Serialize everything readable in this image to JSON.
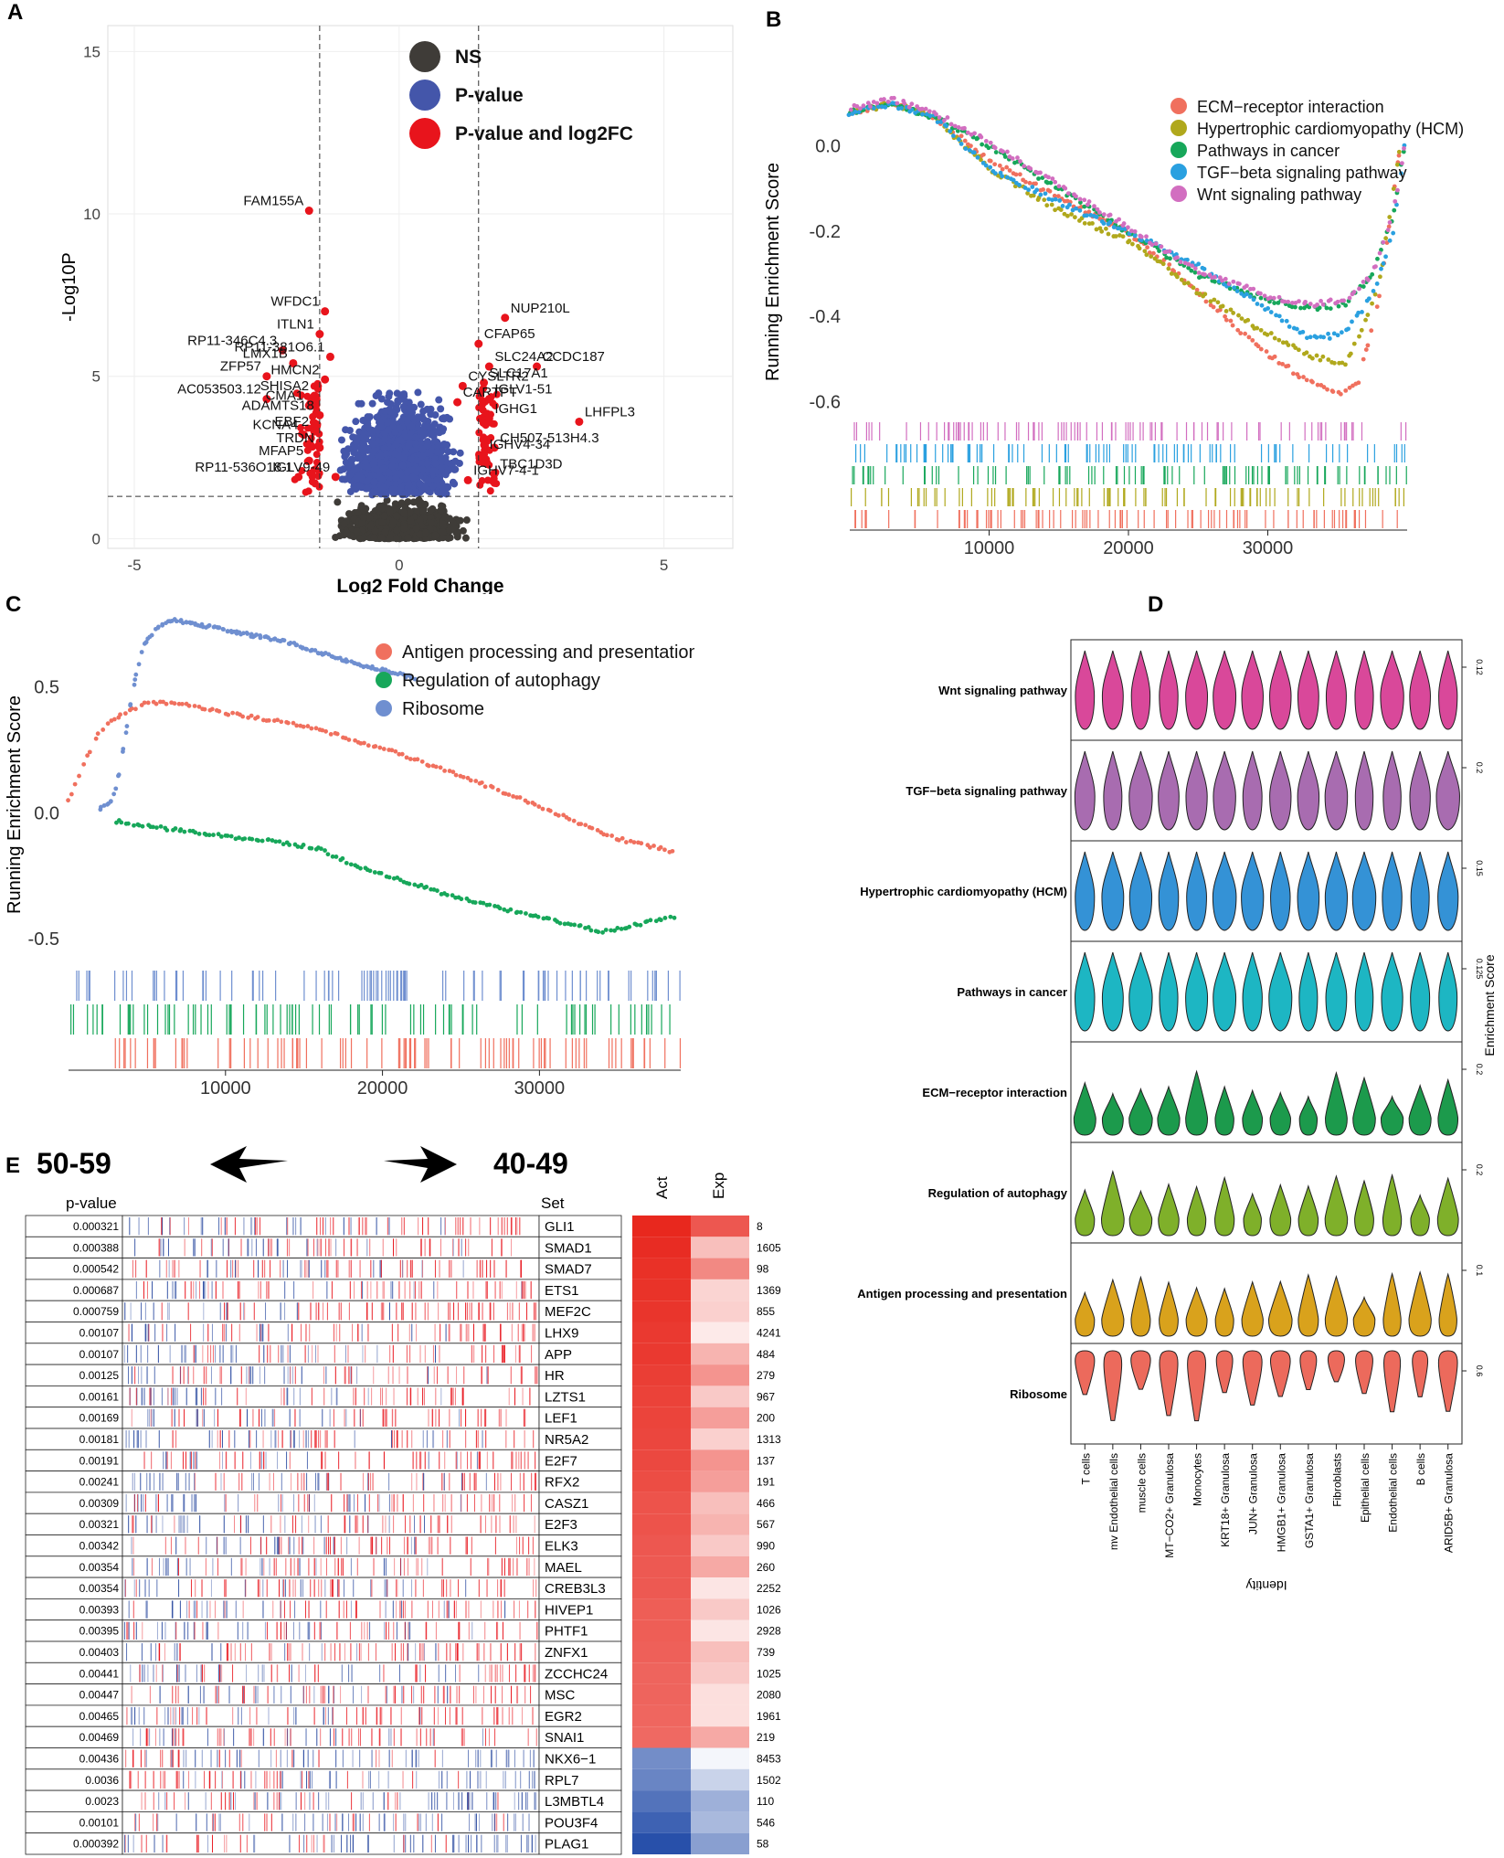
{
  "panel_labels": {
    "a": "A",
    "b": "B",
    "c": "C",
    "d": "D",
    "e": "E"
  },
  "colors": {
    "ns": "#3f3c38",
    "pval": "#4456aa",
    "pfc": "#e8141c",
    "bar_blue": "#2a4aa0",
    "bar_red": "#e8141c"
  },
  "chart_data": [
    {
      "id": "A",
      "type": "scatter",
      "title": "",
      "xlabel": "Log2 Fold Change",
      "ylabel": "-Log10P",
      "xlim": [
        -5.5,
        6.3
      ],
      "ylim": [
        -0.3,
        15.8
      ],
      "xticks": [
        "-5",
        "0",
        "5"
      ],
      "yticks": [
        "0",
        "5",
        "10",
        "15"
      ],
      "xtick_values": [
        -5,
        0,
        5
      ],
      "ytick_values": [
        0,
        5,
        10,
        15
      ],
      "thresholds": {
        "x": [
          -1.5,
          1.5
        ],
        "y": 1.3
      },
      "legend": [
        {
          "label": "NS",
          "color": "#3f3c38"
        },
        {
          "label": "P-value",
          "color": "#4456aa"
        },
        {
          "label": "P-value and log2FC",
          "color": "#e8141c"
        }
      ],
      "labels": [
        {
          "text": "FAM155A",
          "x": -1.7,
          "y": 10.1
        },
        {
          "text": "WFDC1",
          "x": -1.4,
          "y": 7.0
        },
        {
          "text": "NUP210L",
          "x": 2.0,
          "y": 6.8
        },
        {
          "text": "ITLN1",
          "x": -1.5,
          "y": 6.3
        },
        {
          "text": "CFAP65",
          "x": 1.5,
          "y": 6.0
        },
        {
          "text": "RP11-346C4.3",
          "x": -2.2,
          "y": 5.8
        },
        {
          "text": "RP11-381O6.1",
          "x": -1.3,
          "y": 5.6
        },
        {
          "text": "LMX1B",
          "x": -2.0,
          "y": 5.4
        },
        {
          "text": "SLC24A2",
          "x": 1.7,
          "y": 5.3
        },
        {
          "text": "CCDC187",
          "x": 2.6,
          "y": 5.3
        },
        {
          "text": "ZFP57",
          "x": -2.5,
          "y": 5.0
        },
        {
          "text": "HMCN2",
          "x": -1.4,
          "y": 4.9
        },
        {
          "text": "SLC17A1",
          "x": 1.6,
          "y": 4.8
        },
        {
          "text": "CYSLTR2",
          "x": 1.2,
          "y": 4.7
        },
        {
          "text": "AC053503.12",
          "x": -2.5,
          "y": 4.3
        },
        {
          "text": "SHISA2",
          "x": -1.6,
          "y": 4.4
        },
        {
          "text": "CARTPT",
          "x": 1.1,
          "y": 4.2
        },
        {
          "text": "IGLV1-51",
          "x": 1.7,
          "y": 4.3
        },
        {
          "text": "CMA1",
          "x": -1.7,
          "y": 4.1
        },
        {
          "text": "ADAMTS18",
          "x": -1.5,
          "y": 3.8
        },
        {
          "text": "IGHG1",
          "x": 1.7,
          "y": 3.7
        },
        {
          "text": "LHFPL3",
          "x": 3.4,
          "y": 3.6
        },
        {
          "text": "KCNA4",
          "x": -1.8,
          "y": 3.2
        },
        {
          "text": "EBF2",
          "x": -1.6,
          "y": 3.3
        },
        {
          "text": "CH507-513H4.3",
          "x": 1.8,
          "y": 2.8
        },
        {
          "text": "TRDN",
          "x": -1.5,
          "y": 2.8
        },
        {
          "text": "MFAP5",
          "x": -1.7,
          "y": 2.4
        },
        {
          "text": "IGHV4-34",
          "x": 1.6,
          "y": 2.6
        },
        {
          "text": "TBC1D3D",
          "x": 1.8,
          "y": 2.0
        },
        {
          "text": "RP11-536O18.1",
          "x": -1.9,
          "y": 1.9
        },
        {
          "text": "IGLV9-49",
          "x": -1.2,
          "y": 1.9
        },
        {
          "text": "IGHV7-4-1",
          "x": 1.3,
          "y": 1.8
        }
      ]
    },
    {
      "id": "B",
      "type": "line",
      "xlabel": "",
      "ylabel": "Running Enrichment Score",
      "xlim": [
        0,
        40000
      ],
      "ylim": [
        -0.62,
        0.14
      ],
      "xticks": [
        "10000",
        "20000",
        "30000"
      ],
      "yticks": [
        "0.0",
        "-0.2",
        "-0.4",
        "-0.6"
      ],
      "xtick_values": [
        10000,
        20000,
        30000
      ],
      "ytick_values": [
        0.0,
        -0.2,
        -0.4,
        -0.6
      ],
      "series": [
        {
          "name": "ECM−receptor interaction",
          "color": "#f0705e",
          "x": [
            0,
            3000,
            6000,
            10000,
            15000,
            20000,
            25000,
            29000,
            31000,
            33000,
            35500,
            36500,
            38000,
            39500
          ],
          "values": [
            0.08,
            0.1,
            0.07,
            -0.03,
            -0.12,
            -0.2,
            -0.34,
            -0.46,
            -0.51,
            -0.55,
            -0.58,
            -0.55,
            -0.35,
            0.0
          ]
        },
        {
          "name": "Hypertrophic cardiomyopathy (HCM)",
          "color": "#b0a81c",
          "x": [
            0,
            3000,
            6000,
            10000,
            15000,
            20000,
            25000,
            29000,
            33000,
            35500,
            36500,
            38000,
            39500
          ],
          "values": [
            0.08,
            0.1,
            0.07,
            -0.05,
            -0.15,
            -0.22,
            -0.34,
            -0.42,
            -0.49,
            -0.51,
            -0.45,
            -0.32,
            0.0
          ]
        },
        {
          "name": "Pathways in cancer",
          "color": "#17a75a",
          "x": [
            0,
            3000,
            6000,
            10000,
            15000,
            20000,
            25000,
            30000,
            33000,
            35500,
            37500,
            39000,
            39800
          ],
          "values": [
            0.08,
            0.1,
            0.07,
            0.0,
            -0.1,
            -0.2,
            -0.3,
            -0.36,
            -0.38,
            -0.37,
            -0.3,
            -0.16,
            0.0
          ]
        },
        {
          "name": "TGF−beta signaling pathway",
          "color": "#2aa0e0",
          "x": [
            0,
            3000,
            6000,
            10000,
            15000,
            20000,
            25000,
            29000,
            33000,
            35500,
            37500,
            39000,
            39800
          ],
          "values": [
            0.08,
            0.1,
            0.07,
            -0.05,
            -0.13,
            -0.2,
            -0.28,
            -0.36,
            -0.45,
            -0.44,
            -0.35,
            -0.2,
            0.0
          ]
        },
        {
          "name": "Wnt signaling pathway",
          "color": "#d26ec0",
          "x": [
            0,
            3000,
            6000,
            10000,
            15000,
            20000,
            25000,
            30000,
            33000,
            35500,
            37500,
            39000,
            39800
          ],
          "values": [
            0.09,
            0.11,
            0.08,
            0.01,
            -0.09,
            -0.19,
            -0.29,
            -0.35,
            -0.37,
            -0.36,
            -0.3,
            -0.16,
            0.0
          ]
        }
      ]
    },
    {
      "id": "C",
      "type": "line",
      "xlabel": "",
      "ylabel": "Running Enrichment Score",
      "xlim": [
        0,
        39000
      ],
      "ylim": [
        -0.58,
        0.8
      ],
      "xticks": [
        "10000",
        "20000",
        "30000"
      ],
      "yticks": [
        "0.5",
        "0.0",
        "-0.5"
      ],
      "xtick_values": [
        10000,
        20000,
        30000
      ],
      "ytick_values": [
        0.5,
        0.0,
        -0.5
      ],
      "series": [
        {
          "name": "Antigen processing and presentation",
          "color": "#f0705e",
          "x": [
            0,
            1000,
            2000,
            3500,
            5000,
            7000,
            10000,
            15000,
            20000,
            25000,
            30000,
            35000,
            38500
          ],
          "values": [
            0.05,
            0.2,
            0.33,
            0.4,
            0.44,
            0.44,
            0.4,
            0.35,
            0.26,
            0.15,
            0.03,
            -0.1,
            -0.15
          ]
        },
        {
          "name": "Regulation of autophagy",
          "color": "#17a75a",
          "x": [
            3000,
            5000,
            10000,
            13000,
            16000,
            18000,
            21000,
            24000,
            27000,
            30000,
            34000,
            38500
          ],
          "values": [
            -0.03,
            -0.05,
            -0.09,
            -0.11,
            -0.14,
            -0.2,
            -0.26,
            -0.32,
            -0.37,
            -0.41,
            -0.47,
            -0.41
          ]
        },
        {
          "name": "Ribosome",
          "color": "#6f8fd0",
          "x": [
            2000,
            2800,
            3300,
            3800,
            4300,
            4800,
            5500,
            6500,
            7500,
            10000,
            14000,
            18000,
            22000
          ],
          "values": [
            0.02,
            0.05,
            0.18,
            0.38,
            0.55,
            0.67,
            0.73,
            0.77,
            0.76,
            0.73,
            0.68,
            0.6,
            0.54
          ]
        }
      ]
    },
    {
      "id": "D",
      "type": "violin",
      "xlabel": "Identity",
      "ylabel": "Enrichment Score",
      "categories": [
        "T cells",
        "mv Endothelial cells",
        "muscle cells",
        "MT−CO2+ Granulosa",
        "Monocytes",
        "KRT18+ Granulosa",
        "JUN+ Granulosa",
        "HMGB1+ Granulosa",
        "GSTA1+ Granulosa",
        "Fibroblasts",
        "Epithelial cells",
        "Endothelial cells",
        "B cells",
        "ARID5B+ Granulosa"
      ],
      "series": [
        {
          "name": "Wnt signaling pathway",
          "color": "#d9489a",
          "tick": "0.12"
        },
        {
          "name": "TGF−beta signaling pathway",
          "color": "#a86cb0",
          "tick": "0.2"
        },
        {
          "name": "Hypertrophic cardiomyopathy (HCM)",
          "color": "#3492d6",
          "tick": "0.15"
        },
        {
          "name": "Pathways in cancer",
          "color": "#1db6c3",
          "tick": "0.125"
        },
        {
          "name": "ECM−receptor interaction",
          "color": "#1c9a4c",
          "tick": "0.2"
        },
        {
          "name": "Regulation of autophagy",
          "color": "#7fb02a",
          "tick": "0.2"
        },
        {
          "name": "Antigen processing and presentation",
          "color": "#d9a21c",
          "tick": "0.1"
        },
        {
          "name": "Ribosome",
          "color": "#ec6a5c",
          "tick": "0.6"
        }
      ]
    },
    {
      "id": "E",
      "type": "table",
      "title_left": "50-59",
      "title_right": "40-49",
      "col_pvalue": "p-value",
      "col_set": "Set",
      "col_act": "Act",
      "col_exp": "Exp",
      "rows": [
        {
          "p": "0.000321",
          "set": "GLI1",
          "n": "8",
          "dir": "up",
          "act": 1.0,
          "exp": 0.78
        },
        {
          "p": "0.000388",
          "set": "SMAD1",
          "n": "1605",
          "dir": "up",
          "act": 0.98,
          "exp": 0.3
        },
        {
          "p": "0.000542",
          "set": "SMAD7",
          "n": "98",
          "dir": "up",
          "act": 0.96,
          "exp": 0.55
        },
        {
          "p": "0.000687",
          "set": "ETS1",
          "n": "1369",
          "dir": "up",
          "act": 0.95,
          "exp": 0.2
        },
        {
          "p": "0.000759",
          "set": "MEF2C",
          "n": "855",
          "dir": "up",
          "act": 0.94,
          "exp": 0.22
        },
        {
          "p": "0.00107",
          "set": "LHX9",
          "n": "4241",
          "dir": "up",
          "act": 0.92,
          "exp": 0.1
        },
        {
          "p": "0.00107",
          "set": "APP",
          "n": "484",
          "dir": "up",
          "act": 0.92,
          "exp": 0.35
        },
        {
          "p": "0.00125",
          "set": "HR",
          "n": "279",
          "dir": "up",
          "act": 0.9,
          "exp": 0.5
        },
        {
          "p": "0.00161",
          "set": "LZTS1",
          "n": "967",
          "dir": "up",
          "act": 0.88,
          "exp": 0.25
        },
        {
          "p": "0.00169",
          "set": "LEF1",
          "n": "200",
          "dir": "up",
          "act": 0.87,
          "exp": 0.45
        },
        {
          "p": "0.00181",
          "set": "NR5A2",
          "n": "1313",
          "dir": "up",
          "act": 0.86,
          "exp": 0.22
        },
        {
          "p": "0.00191",
          "set": "E2F7",
          "n": "137",
          "dir": "up",
          "act": 0.85,
          "exp": 0.5
        },
        {
          "p": "0.00241",
          "set": "RFX2",
          "n": "191",
          "dir": "up",
          "act": 0.83,
          "exp": 0.45
        },
        {
          "p": "0.00309",
          "set": "CASZ1",
          "n": "466",
          "dir": "up",
          "act": 0.8,
          "exp": 0.3
        },
        {
          "p": "0.00321",
          "set": "E2F3",
          "n": "567",
          "dir": "up",
          "act": 0.8,
          "exp": 0.35
        },
        {
          "p": "0.00342",
          "set": "ELK3",
          "n": "990",
          "dir": "up",
          "act": 0.78,
          "exp": 0.25
        },
        {
          "p": "0.00354",
          "set": "MAEL",
          "n": "260",
          "dir": "up",
          "act": 0.77,
          "exp": 0.4
        },
        {
          "p": "0.00354",
          "set": "CREB3L3",
          "n": "2252",
          "dir": "up",
          "act": 0.77,
          "exp": 0.12
        },
        {
          "p": "0.00393",
          "set": "HIVEP1",
          "n": "1026",
          "dir": "up",
          "act": 0.75,
          "exp": 0.25
        },
        {
          "p": "0.00395",
          "set": "PHTF1",
          "n": "2928",
          "dir": "up",
          "act": 0.75,
          "exp": 0.12
        },
        {
          "p": "0.00403",
          "set": "ZNFX1",
          "n": "739",
          "dir": "up",
          "act": 0.74,
          "exp": 0.3
        },
        {
          "p": "0.00441",
          "set": "ZCCHC24",
          "n": "1025",
          "dir": "up",
          "act": 0.72,
          "exp": 0.25
        },
        {
          "p": "0.00447",
          "set": "MSC",
          "n": "2080",
          "dir": "up",
          "act": 0.72,
          "exp": 0.15
        },
        {
          "p": "0.00465",
          "set": "EGR2",
          "n": "1961",
          "dir": "up",
          "act": 0.71,
          "exp": 0.15
        },
        {
          "p": "0.00469",
          "set": "SNAI1",
          "n": "219",
          "dir": "up",
          "act": 0.7,
          "exp": 0.4
        },
        {
          "p": "0.00436",
          "set": "NKX6−1",
          "n": "8453",
          "dir": "down",
          "act": 0.65,
          "exp": 0.05
        },
        {
          "p": "0.0036",
          "set": "RPL7",
          "n": "1502",
          "dir": "down",
          "act": 0.7,
          "exp": 0.25
        },
        {
          "p": "0.0023",
          "set": "L3MBTL4",
          "n": "110",
          "dir": "down",
          "act": 0.8,
          "exp": 0.45
        },
        {
          "p": "0.00101",
          "set": "POU3F4",
          "n": "546",
          "dir": "down",
          "act": 0.9,
          "exp": 0.4
        },
        {
          "p": "0.000392",
          "set": "PLAG1",
          "n": "58",
          "dir": "down",
          "act": 1.0,
          "exp": 0.55
        }
      ]
    }
  ]
}
